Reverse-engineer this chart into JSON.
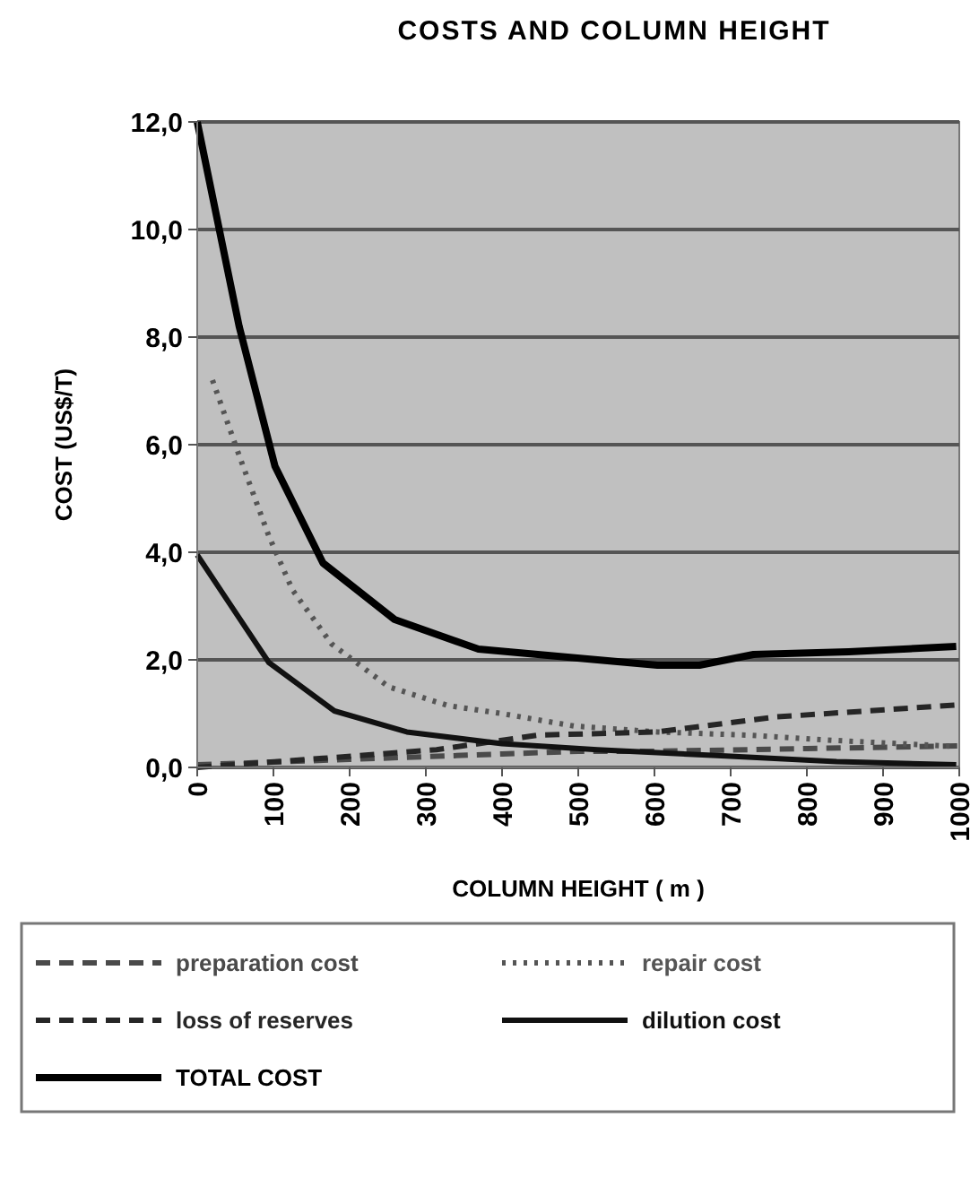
{
  "chart_data": {
    "type": "line",
    "title": "COSTS  AND COLUMN HEIGHT",
    "xlabel": "COLUMN HEIGHT ( m )",
    "ylabel": "COST (US$/T)",
    "xlim": [
      0,
      1000
    ],
    "xticks": [
      0,
      100,
      200,
      300,
      400,
      500,
      600,
      700,
      800,
      900,
      1000
    ],
    "ylim": [
      0,
      12
    ],
    "yticks": [
      {
        "value": 0,
        "label": "0,0"
      },
      {
        "value": 2,
        "label": "2,0"
      },
      {
        "value": 4,
        "label": "4,0"
      },
      {
        "value": 6,
        "label": "6,0"
      },
      {
        "value": 8,
        "label": "8,0"
      },
      {
        "value": 10,
        "label": "10,0"
      },
      {
        "value": 12,
        "label": "12,0"
      }
    ],
    "grid": "y",
    "legend": "bottom",
    "series": [
      {
        "name": "preparation cost",
        "color": "#4a4a4a",
        "line_style": "dashed",
        "x": [
          0,
          200,
          400,
          500,
          600,
          800,
          1000
        ],
        "values": [
          0.05,
          0.15,
          0.25,
          0.3,
          0.3,
          0.35,
          0.4
        ]
      },
      {
        "name": "repair cost",
        "color": "#555555",
        "line_style": "dotted",
        "x": [
          20,
          55,
          94,
          125,
          176,
          251,
          329,
          400,
          494,
          604,
          722,
          839,
          996
        ],
        "values": [
          7.2,
          5.8,
          4.3,
          3.3,
          2.3,
          1.5,
          1.15,
          1.0,
          0.77,
          0.66,
          0.6,
          0.5,
          0.39
        ]
      },
      {
        "name": "loss of reserves",
        "color": "#262626",
        "line_style": "dashed",
        "x": [
          0,
          165,
          314,
          447,
          604,
          761,
          996
        ],
        "values": [
          0,
          0.17,
          0.33,
          0.6,
          0.66,
          0.94,
          1.16
        ]
      },
      {
        "name": "dilution cost",
        "color": "#111111",
        "line_style": "solid",
        "x": [
          0,
          94,
          180,
          275,
          400,
          525,
          682,
          839,
          996
        ],
        "values": [
          3.95,
          1.95,
          1.05,
          0.66,
          0.44,
          0.33,
          0.22,
          0.11,
          0.05
        ]
      },
      {
        "name": "TOTAL COST",
        "color": "#000000",
        "line_style": "solid",
        "x": [
          0,
          55,
          102,
          165,
          259,
          369,
          486,
          604,
          659,
          730,
          855,
          996
        ],
        "values": [
          12,
          8.2,
          5.6,
          3.8,
          2.75,
          2.2,
          2.05,
          1.9,
          1.9,
          2.1,
          2.15,
          2.25
        ]
      }
    ]
  }
}
